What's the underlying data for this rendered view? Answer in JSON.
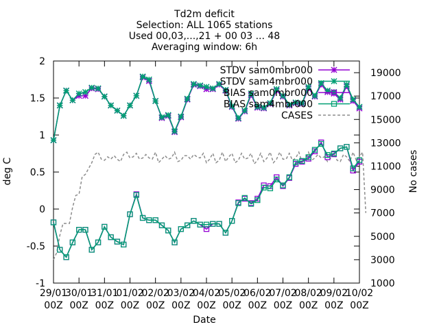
{
  "chart_data": {
    "type": "line",
    "title_lines": [
      "Td2m deficit",
      "Selection: ALL   1065 stations",
      "Used 00,03,...,21 + 00 03 ... 48",
      "Averaging window:  6h"
    ],
    "xlabel": "Date",
    "ylabel": "deg C",
    "y2label": "No cases",
    "ylim": [
      -1,
      2
    ],
    "yticks": [
      "-1",
      "-0.5",
      "0",
      "0.5",
      "1",
      "1.5",
      "2"
    ],
    "y2lim": [
      1000,
      20000
    ],
    "y2ticks": [
      "1000",
      "3000",
      "5000",
      "7000",
      "9000",
      "11000",
      "13000",
      "15000",
      "17000",
      "19000"
    ],
    "xlim": [
      0,
      12
    ],
    "xticks": [
      {
        "date": "29/01",
        "hour": "00Z"
      },
      {
        "date": "30/01",
        "hour": "00Z"
      },
      {
        "date": "31/01",
        "hour": "00Z"
      },
      {
        "date": "01/02",
        "hour": "00Z"
      },
      {
        "date": "02/02",
        "hour": "00Z"
      },
      {
        "date": "03/02",
        "hour": "00Z"
      },
      {
        "date": "04/02",
        "hour": "00Z"
      },
      {
        "date": "05/02",
        "hour": "00Z"
      },
      {
        "date": "06/02",
        "hour": "00Z"
      },
      {
        "date": "07/02",
        "hour": "00Z"
      },
      {
        "date": "08/02",
        "hour": "00Z"
      },
      {
        "date": "09/02",
        "hour": "00Z"
      },
      {
        "date": "10/02",
        "hour": "00Z"
      }
    ],
    "x_step_days": 0.25,
    "grid": false,
    "legend_position": "top-right",
    "series": [
      {
        "name": "STDV sam0mbr000",
        "color": "#9400d3",
        "marker": "star",
        "values": [
          0.93,
          1.4,
          1.6,
          1.47,
          1.53,
          1.53,
          1.63,
          1.62,
          1.52,
          1.4,
          1.33,
          1.26,
          1.4,
          1.53,
          1.78,
          1.73,
          1.46,
          1.23,
          1.26,
          1.04,
          1.24,
          1.48,
          1.68,
          1.66,
          1.62,
          1.62,
          1.68,
          1.6,
          1.38,
          1.22,
          1.32,
          1.54,
          1.37,
          1.36,
          1.42,
          1.6,
          1.52,
          1.4,
          1.43,
          1.42,
          1.63,
          1.52,
          1.68,
          1.58,
          1.56,
          1.48,
          1.66,
          1.46,
          1.36
        ]
      },
      {
        "name": "STDV sam4mbr000",
        "color": "#009e73",
        "marker": "star",
        "values": [
          0.93,
          1.4,
          1.6,
          1.47,
          1.56,
          1.58,
          1.64,
          1.63,
          1.52,
          1.4,
          1.33,
          1.26,
          1.4,
          1.53,
          1.79,
          1.75,
          1.46,
          1.24,
          1.27,
          1.05,
          1.25,
          1.49,
          1.69,
          1.67,
          1.65,
          1.63,
          1.69,
          1.61,
          1.39,
          1.23,
          1.33,
          1.56,
          1.38,
          1.37,
          1.43,
          1.62,
          1.53,
          1.41,
          1.44,
          1.43,
          1.65,
          1.53,
          1.7,
          1.6,
          1.58,
          1.5,
          1.68,
          1.48,
          1.38
        ]
      },
      {
        "name": "BIAS sam0mbr000",
        "color": "#9400d3",
        "marker": "box",
        "values": [
          -0.18,
          -0.55,
          -0.65,
          -0.45,
          -0.28,
          -0.28,
          -0.55,
          -0.45,
          -0.24,
          -0.38,
          -0.44,
          -0.48,
          -0.07,
          0.2,
          -0.12,
          -0.15,
          -0.15,
          -0.22,
          -0.29,
          -0.45,
          -0.27,
          -0.22,
          -0.16,
          -0.21,
          -0.27,
          -0.2,
          -0.2,
          -0.32,
          -0.16,
          0.09,
          0.14,
          0.08,
          0.14,
          0.32,
          0.31,
          0.43,
          0.31,
          0.42,
          0.61,
          0.64,
          0.68,
          0.78,
          0.9,
          0.7,
          0.74,
          0.82,
          0.84,
          0.52,
          0.64
        ]
      },
      {
        "name": "BIAS sam4mbr000",
        "color": "#009e73",
        "marker": "box",
        "values": [
          -0.18,
          -0.55,
          -0.65,
          -0.45,
          -0.28,
          -0.28,
          -0.55,
          -0.45,
          -0.24,
          -0.38,
          -0.44,
          -0.48,
          -0.07,
          0.19,
          -0.12,
          -0.15,
          -0.15,
          -0.22,
          -0.29,
          -0.45,
          -0.27,
          -0.22,
          -0.16,
          -0.21,
          -0.21,
          -0.2,
          -0.2,
          -0.32,
          -0.16,
          0.08,
          0.15,
          0.07,
          0.12,
          0.29,
          0.28,
          0.4,
          0.32,
          0.43,
          0.63,
          0.65,
          0.7,
          0.8,
          0.88,
          0.73,
          0.75,
          0.82,
          0.84,
          0.55,
          0.66
        ]
      },
      {
        "name": "CASES",
        "color": "#8c8c8c",
        "marker": "none",
        "axis": "y2",
        "step_days": 0.125,
        "values": [
          3000,
          3600,
          5100,
          6100,
          6100,
          6100,
          7500,
          8500,
          8600,
          10100,
          10300,
          10800,
          11300,
          12000,
          12200,
          11600,
          11500,
          11800,
          11600,
          11900,
          11600,
          11400,
          12000,
          12200,
          11700,
          11800,
          12100,
          11600,
          11700,
          12000,
          11700,
          11600,
          12200,
          11300,
          11600,
          11900,
          11600,
          11700,
          12200,
          11400,
          11500,
          11900,
          11900,
          11600,
          12000,
          11800,
          11700,
          12100,
          11300,
          11600,
          12100,
          11300,
          11500,
          12200,
          11400,
          11800,
          12100,
          11300,
          11500,
          12100,
          11600,
          11700,
          12100,
          11200,
          11500,
          12100,
          11400,
          11700,
          12200,
          11300,
          11600,
          12200,
          11600,
          11600,
          12100,
          11500,
          11700,
          12200,
          11300,
          11600,
          12200,
          11500,
          11700,
          12000,
          11700,
          11800,
          11400,
          11700,
          12100,
          11500,
          11400,
          12000,
          11800,
          11400,
          12200,
          11500,
          11800,
          12200,
          7000
        ]
      }
    ]
  }
}
